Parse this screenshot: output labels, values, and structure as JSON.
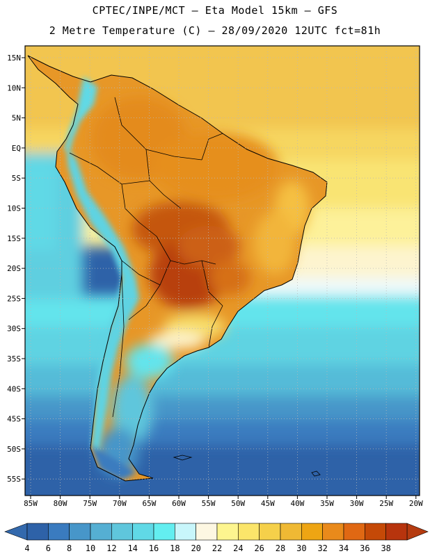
{
  "header": {
    "title_line1": "CPTEC/INPE/MCT –  Eta Model 15km – GFS",
    "title_line2": "2 Metre Temperature (C) – 28/09/2020 12UTC fct=81h"
  },
  "map": {
    "lat_labels": [
      "15N",
      "10N",
      "5N",
      "EQ",
      "5S",
      "10S",
      "15S",
      "20S",
      "25S",
      "30S",
      "35S",
      "40S",
      "45S",
      "50S",
      "55S"
    ],
    "lon_labels": [
      "85W",
      "80W",
      "75W",
      "70W",
      "65W",
      "60W",
      "55W",
      "50W",
      "45W",
      "40W",
      "35W",
      "30W",
      "25W",
      "20W"
    ]
  },
  "colorbar": {
    "labels": [
      "4",
      "6",
      "8",
      "10",
      "12",
      "14",
      "16",
      "18",
      "20",
      "22",
      "24",
      "26",
      "28",
      "30",
      "32",
      "34",
      "36",
      "38"
    ],
    "colors": [
      "#2e62a8",
      "#3a7bbf",
      "#4796c9",
      "#55afd3",
      "#5fc6dc",
      "#60d9e6",
      "#63eef0",
      "#c8f6fb",
      "#fdf7e2",
      "#fdf58f",
      "#fbe56a",
      "#f5d04a",
      "#efb934",
      "#eea513",
      "#e98a1b",
      "#e06813",
      "#c54907",
      "#b7340d"
    ],
    "low_color": "#3369ad",
    "high_color": "#b53b10"
  }
}
